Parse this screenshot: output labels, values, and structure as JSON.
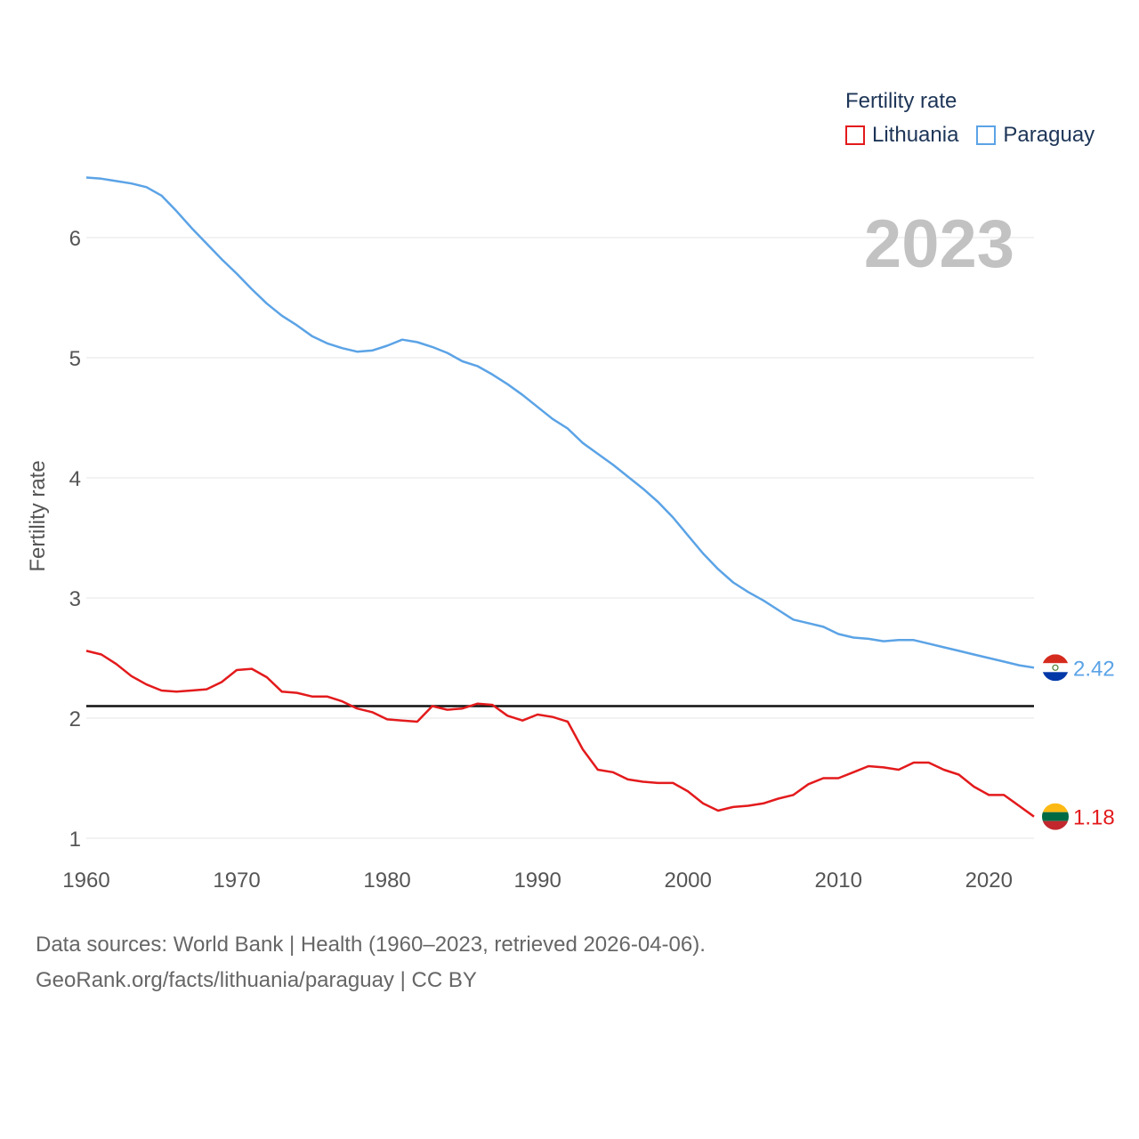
{
  "legend": {
    "title": "Fertility rate",
    "items": [
      {
        "label": "Lithuania",
        "color": "#e31a1c"
      },
      {
        "label": "Paraguay",
        "color": "#5ba3e6"
      }
    ]
  },
  "footer": {
    "line1": "Data sources: World Bank | Health (1960–2023, retrieved 2026-04-06).",
    "line2": "GeoRank.org/facts/lithuania/paraguay | CC BY"
  },
  "chart_data": {
    "type": "line",
    "title": "Fertility rate",
    "year_label": "2023",
    "xlabel": "",
    "ylabel": "Fertility rate",
    "xlim": [
      1960,
      2023
    ],
    "ylim": [
      0.8,
      6.6
    ],
    "xticks": [
      1960,
      1970,
      1980,
      1990,
      2000,
      2010,
      2020
    ],
    "yticks": [
      1,
      2,
      3,
      4,
      5,
      6
    ],
    "reference_line": 2.1,
    "x": [
      1960,
      1961,
      1962,
      1963,
      1964,
      1965,
      1966,
      1967,
      1968,
      1969,
      1970,
      1971,
      1972,
      1973,
      1974,
      1975,
      1976,
      1977,
      1978,
      1979,
      1980,
      1981,
      1982,
      1983,
      1984,
      1985,
      1986,
      1987,
      1988,
      1989,
      1990,
      1991,
      1992,
      1993,
      1994,
      1995,
      1996,
      1997,
      1998,
      1999,
      2000,
      2001,
      2002,
      2003,
      2004,
      2005,
      2006,
      2007,
      2008,
      2009,
      2010,
      2011,
      2012,
      2013,
      2014,
      2015,
      2016,
      2017,
      2018,
      2019,
      2020,
      2021,
      2022,
      2023
    ],
    "series": [
      {
        "name": "Lithuania",
        "color": "#e31a1c",
        "end_label": "1.18",
        "values": [
          2.56,
          2.53,
          2.45,
          2.35,
          2.28,
          2.23,
          2.22,
          2.23,
          2.24,
          2.3,
          2.4,
          2.41,
          2.34,
          2.22,
          2.21,
          2.18,
          2.18,
          2.14,
          2.08,
          2.05,
          1.99,
          1.98,
          1.97,
          2.1,
          2.07,
          2.08,
          2.12,
          2.11,
          2.02,
          1.98,
          2.03,
          2.01,
          1.97,
          1.74,
          1.57,
          1.55,
          1.49,
          1.47,
          1.46,
          1.46,
          1.39,
          1.29,
          1.23,
          1.26,
          1.27,
          1.29,
          1.33,
          1.36,
          1.45,
          1.5,
          1.5,
          1.55,
          1.6,
          1.59,
          1.57,
          1.63,
          1.63,
          1.57,
          1.53,
          1.43,
          1.36,
          1.36,
          1.27,
          1.18
        ]
      },
      {
        "name": "Paraguay",
        "color": "#5ba3e6",
        "end_label": "2.42",
        "values": [
          6.5,
          6.49,
          6.47,
          6.45,
          6.42,
          6.35,
          6.22,
          6.08,
          5.95,
          5.82,
          5.7,
          5.57,
          5.45,
          5.35,
          5.27,
          5.18,
          5.12,
          5.08,
          5.05,
          5.06,
          5.1,
          5.15,
          5.13,
          5.09,
          5.04,
          4.97,
          4.93,
          4.86,
          4.78,
          4.69,
          4.59,
          4.49,
          4.41,
          4.29,
          4.2,
          4.11,
          4.01,
          3.91,
          3.8,
          3.67,
          3.52,
          3.37,
          3.24,
          3.13,
          3.05,
          2.98,
          2.9,
          2.82,
          2.79,
          2.76,
          2.7,
          2.67,
          2.66,
          2.64,
          2.65,
          2.65,
          2.62,
          2.59,
          2.56,
          2.53,
          2.5,
          2.47,
          2.44,
          2.42
        ]
      }
    ]
  }
}
